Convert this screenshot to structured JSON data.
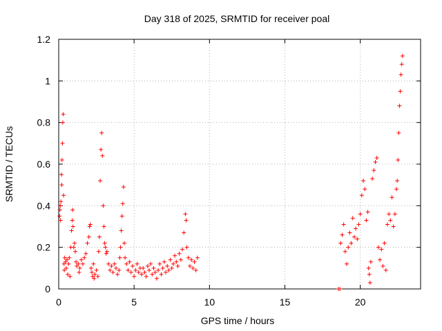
{
  "chart_data": {
    "type": "scatter",
    "title": "Day 318 of 2025, SRMTID for receiver poal",
    "xlabel": "GPS time / hours",
    "ylabel": "SRMTID / TECUs",
    "xlim": [
      0,
      24
    ],
    "ylim": [
      0,
      1.2
    ],
    "xticks": [
      0,
      5,
      10,
      15,
      20
    ],
    "xtick_labels": [
      "0",
      "5",
      "10",
      "15",
      "20"
    ],
    "yticks": [
      0,
      0.2,
      0.4,
      0.6,
      0.8,
      1.0,
      1.2
    ],
    "ytick_labels": [
      "0",
      "0.2",
      "0.4",
      "0.6",
      "0.8",
      "1",
      "1.2"
    ],
    "grid": true,
    "marker": "+",
    "marker_color": "#ff0000",
    "series": [
      {
        "name": "SRMTID",
        "points": [
          [
            0.05,
            0.35
          ],
          [
            0.08,
            0.38
          ],
          [
            0.1,
            0.4
          ],
          [
            0.12,
            0.33
          ],
          [
            0.15,
            0.42
          ],
          [
            0.18,
            0.55
          ],
          [
            0.2,
            0.5
          ],
          [
            0.22,
            0.62
          ],
          [
            0.25,
            0.7
          ],
          [
            0.27,
            0.8
          ],
          [
            0.3,
            0.84
          ],
          [
            0.32,
            0.45
          ],
          [
            0.35,
            0.12
          ],
          [
            0.37,
            0.09
          ],
          [
            0.4,
            0.15
          ],
          [
            0.45,
            0.13
          ],
          [
            0.5,
            0.1
          ],
          [
            0.55,
            0.14
          ],
          [
            0.6,
            0.07
          ],
          [
            0.65,
            0.12
          ],
          [
            0.7,
            0.15
          ],
          [
            0.75,
            0.06
          ],
          [
            0.8,
            0.2
          ],
          [
            0.85,
            0.28
          ],
          [
            0.9,
            0.33
          ],
          [
            0.92,
            0.38
          ],
          [
            0.95,
            0.3
          ],
          [
            1.0,
            0.2
          ],
          [
            1.05,
            0.22
          ],
          [
            1.1,
            0.18
          ],
          [
            1.15,
            0.13
          ],
          [
            1.2,
            0.11
          ],
          [
            1.3,
            0.12
          ],
          [
            1.35,
            0.08
          ],
          [
            1.4,
            0.1
          ],
          [
            1.5,
            0.14
          ],
          [
            1.6,
            0.12
          ],
          [
            1.7,
            0.15
          ],
          [
            1.8,
            0.17
          ],
          [
            1.9,
            0.22
          ],
          [
            2.0,
            0.25
          ],
          [
            2.05,
            0.3
          ],
          [
            2.1,
            0.31
          ],
          [
            2.15,
            0.1
          ],
          [
            2.2,
            0.08
          ],
          [
            2.25,
            0.06
          ],
          [
            2.3,
            0.12
          ],
          [
            2.35,
            0.05
          ],
          [
            2.4,
            0.07
          ],
          [
            2.5,
            0.09
          ],
          [
            2.6,
            0.06
          ],
          [
            2.65,
            0.18
          ],
          [
            2.7,
            0.25
          ],
          [
            2.75,
            0.52
          ],
          [
            2.8,
            0.67
          ],
          [
            2.85,
            0.75
          ],
          [
            2.9,
            0.64
          ],
          [
            2.95,
            0.4
          ],
          [
            3.0,
            0.3
          ],
          [
            3.05,
            0.22
          ],
          [
            3.1,
            0.2
          ],
          [
            3.15,
            0.17
          ],
          [
            3.2,
            0.18
          ],
          [
            3.3,
            0.12
          ],
          [
            3.4,
            0.09
          ],
          [
            3.5,
            0.11
          ],
          [
            3.6,
            0.08
          ],
          [
            3.7,
            0.12
          ],
          [
            3.8,
            0.1
          ],
          [
            3.9,
            0.07
          ],
          [
            4.0,
            0.09
          ],
          [
            4.05,
            0.15
          ],
          [
            4.1,
            0.2
          ],
          [
            4.15,
            0.28
          ],
          [
            4.2,
            0.35
          ],
          [
            4.25,
            0.41
          ],
          [
            4.3,
            0.49
          ],
          [
            4.35,
            0.22
          ],
          [
            4.4,
            0.15
          ],
          [
            4.5,
            0.12
          ],
          [
            4.6,
            0.09
          ],
          [
            4.7,
            0.13
          ],
          [
            4.8,
            0.08
          ],
          [
            4.9,
            0.11
          ],
          [
            5.0,
            0.06
          ],
          [
            5.1,
            0.09
          ],
          [
            5.2,
            0.12
          ],
          [
            5.3,
            0.08
          ],
          [
            5.4,
            0.1
          ],
          [
            5.5,
            0.07
          ],
          [
            5.6,
            0.1
          ],
          [
            5.7,
            0.08
          ],
          [
            5.8,
            0.06
          ],
          [
            5.9,
            0.11
          ],
          [
            6.0,
            0.09
          ],
          [
            6.1,
            0.12
          ],
          [
            6.2,
            0.07
          ],
          [
            6.3,
            0.1
          ],
          [
            6.4,
            0.08
          ],
          [
            6.5,
            0.05
          ],
          [
            6.6,
            0.09
          ],
          [
            6.7,
            0.12
          ],
          [
            6.8,
            0.07
          ],
          [
            6.9,
            0.1
          ],
          [
            7.0,
            0.13
          ],
          [
            7.1,
            0.08
          ],
          [
            7.2,
            0.11
          ],
          [
            7.3,
            0.09
          ],
          [
            7.4,
            0.14
          ],
          [
            7.5,
            0.1
          ],
          [
            7.6,
            0.12
          ],
          [
            7.7,
            0.16
          ],
          [
            7.8,
            0.13
          ],
          [
            7.9,
            0.11
          ],
          [
            8.0,
            0.17
          ],
          [
            8.1,
            0.14
          ],
          [
            8.2,
            0.19
          ],
          [
            8.3,
            0.27
          ],
          [
            8.4,
            0.36
          ],
          [
            8.45,
            0.33
          ],
          [
            8.5,
            0.2
          ],
          [
            8.6,
            0.15
          ],
          [
            8.7,
            0.11
          ],
          [
            8.8,
            0.14
          ],
          [
            8.9,
            0.1
          ],
          [
            9.0,
            0.13
          ],
          [
            9.1,
            0.09
          ],
          [
            9.2,
            0.15
          ],
          [
            18.55,
            0.0
          ],
          [
            18.65,
            0.0
          ],
          [
            18.7,
            0.22
          ],
          [
            18.8,
            0.26
          ],
          [
            18.9,
            0.31
          ],
          [
            19.0,
            0.18
          ],
          [
            19.1,
            0.12
          ],
          [
            19.2,
            0.2
          ],
          [
            19.3,
            0.27
          ],
          [
            19.4,
            0.22
          ],
          [
            19.5,
            0.34
          ],
          [
            19.6,
            0.25
          ],
          [
            19.7,
            0.29
          ],
          [
            19.8,
            0.24
          ],
          [
            19.9,
            0.31
          ],
          [
            20.0,
            0.36
          ],
          [
            20.1,
            0.45
          ],
          [
            20.2,
            0.52
          ],
          [
            20.3,
            0.48
          ],
          [
            20.4,
            0.33
          ],
          [
            20.5,
            0.37
          ],
          [
            20.55,
            0.1
          ],
          [
            20.6,
            0.07
          ],
          [
            20.65,
            0.03
          ],
          [
            20.7,
            0.13
          ],
          [
            20.8,
            0.53
          ],
          [
            20.9,
            0.57
          ],
          [
            21.0,
            0.61
          ],
          [
            21.1,
            0.63
          ],
          [
            21.2,
            0.2
          ],
          [
            21.3,
            0.14
          ],
          [
            21.4,
            0.19
          ],
          [
            21.5,
            0.11
          ],
          [
            21.6,
            0.22
          ],
          [
            21.7,
            0.09
          ],
          [
            21.8,
            0.31
          ],
          [
            21.9,
            0.36
          ],
          [
            22.0,
            0.33
          ],
          [
            22.1,
            0.44
          ],
          [
            22.2,
            0.3
          ],
          [
            22.3,
            0.36
          ],
          [
            22.4,
            0.48
          ],
          [
            22.45,
            0.52
          ],
          [
            22.5,
            0.62
          ],
          [
            22.55,
            0.75
          ],
          [
            22.6,
            0.88
          ],
          [
            22.65,
            0.95
          ],
          [
            22.7,
            1.03
          ],
          [
            22.75,
            1.08
          ],
          [
            22.8,
            1.12
          ]
        ]
      }
    ]
  }
}
